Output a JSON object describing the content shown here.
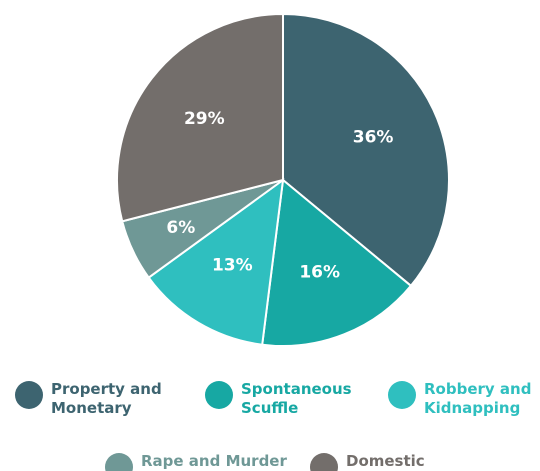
{
  "chart_data": {
    "type": "pie",
    "categories": [
      "Property and Monetary",
      "Spontaneous Scuffle",
      "Robbery and Kidnapping",
      "Rape and Murder",
      "Domestic"
    ],
    "values": [
      36,
      16,
      13,
      6,
      29
    ],
    "value_labels": [
      "36%",
      "16%",
      "13%",
      "6%",
      "29%"
    ],
    "colors": [
      "#3d6470",
      "#17a8a3",
      "#2fbfbf",
      "#6f9896",
      "#736e6b"
    ]
  }
}
